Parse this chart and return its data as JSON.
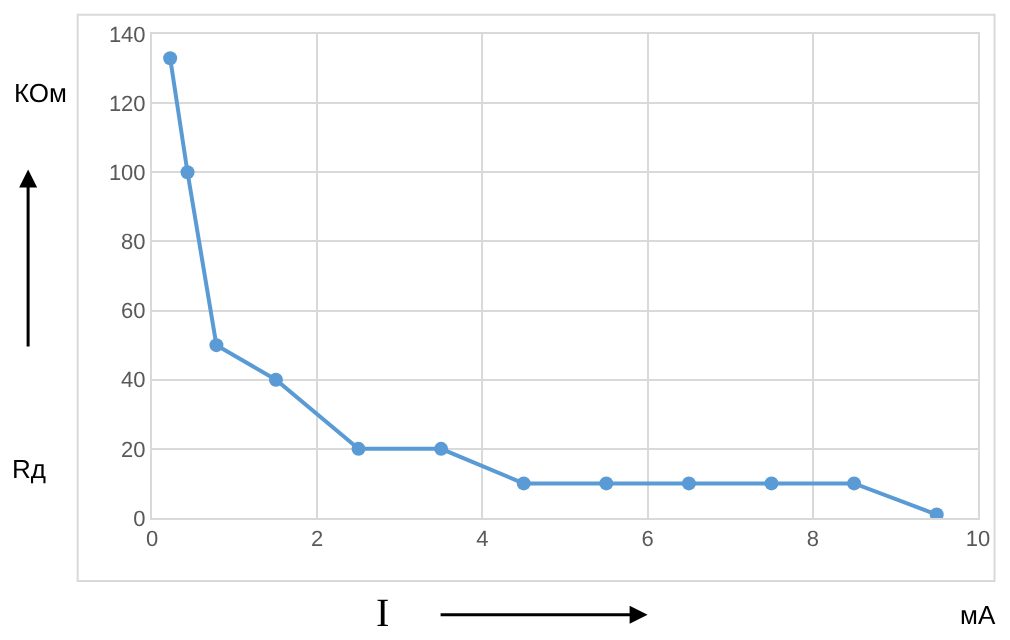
{
  "chart_data": {
    "type": "line",
    "x": [
      0.22,
      0.43,
      0.78,
      1.5,
      2.5,
      3.5,
      4.5,
      5.5,
      6.5,
      7.5,
      8.5,
      9.5
    ],
    "values": [
      133,
      100,
      50,
      40,
      20,
      20,
      10,
      10,
      10,
      10,
      10,
      1
    ],
    "color": "#5b9bd5",
    "marker": "circle",
    "line_style": "solid",
    "xlim": [
      0,
      10
    ],
    "xticks": [
      0,
      2,
      4,
      6,
      8,
      10
    ],
    "ylim": [
      0,
      140
    ],
    "yticks": [
      0,
      20,
      40,
      60,
      80,
      100,
      120,
      140
    ],
    "grid": true,
    "xlabel": "I",
    "ylabel": "Rд",
    "annotations": [
      "КОм",
      "мА"
    ]
  }
}
